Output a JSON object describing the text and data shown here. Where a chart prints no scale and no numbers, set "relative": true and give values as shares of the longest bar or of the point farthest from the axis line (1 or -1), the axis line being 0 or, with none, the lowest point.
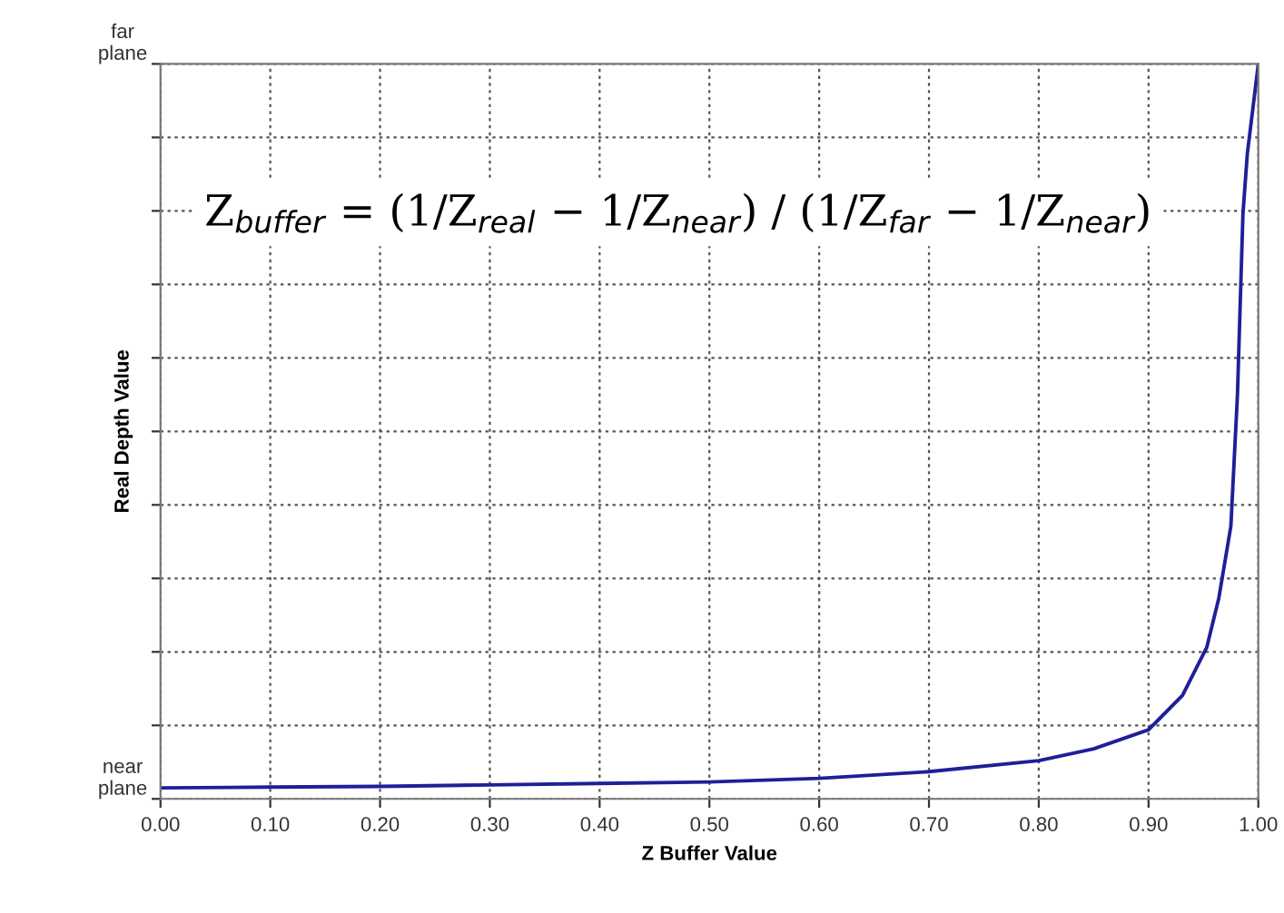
{
  "chart_data": {
    "type": "line",
    "xlabel": "Z Buffer Value",
    "ylabel": "Real Depth Value",
    "x": [
      0,
      0.1,
      0.2,
      0.3,
      0.4,
      0.5,
      0.6,
      0.7,
      0.8,
      0.85,
      0.9,
      0.931,
      0.953,
      0.964,
      0.975,
      0.981,
      0.986,
      0.99,
      1.0
    ],
    "series": [
      {
        "color": "#1f1f9a",
        "values": [
          0.015,
          0.016,
          0.017,
          0.019,
          0.021,
          0.023,
          0.028,
          0.037,
          0.052,
          0.068,
          0.094,
          0.141,
          0.206,
          0.273,
          0.371,
          0.55,
          0.796,
          0.878,
          1.0
        ]
      }
    ],
    "xlim": [
      0,
      1
    ],
    "xticks": [
      {
        "value": 0,
        "label": "0.00"
      },
      {
        "value": 0.1,
        "label": "0.10"
      },
      {
        "value": 0.2,
        "label": "0.20"
      },
      {
        "value": 0.3,
        "label": "0.30"
      },
      {
        "value": 0.4,
        "label": "0.40"
      },
      {
        "value": 0.5,
        "label": "0.50"
      },
      {
        "value": 0.6,
        "label": "0.60"
      },
      {
        "value": 0.7,
        "label": "0.70"
      },
      {
        "value": 0.8,
        "label": "0.80"
      },
      {
        "value": 0.9,
        "label": "0.90"
      },
      {
        "value": 1,
        "label": "1.00"
      }
    ],
    "relative": true,
    "grid": true,
    "marker": "none",
    "line_style": "solid",
    "legend": false,
    "annotations": [
      "far\nplane",
      "near\nplane",
      "Z$_{buffer}$ = (1/Z$_{real}$ − 1/Z$_{near}$) / (1/Z$_{far}$ − 1/Z$_{near}$)"
    ]
  }
}
